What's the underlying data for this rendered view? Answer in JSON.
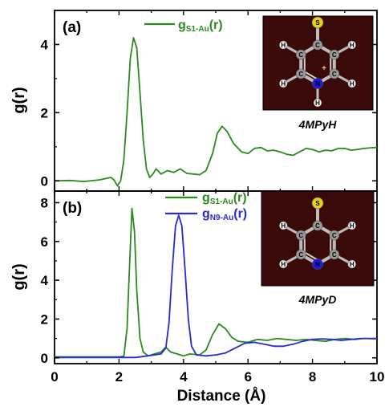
{
  "chart_data": [
    {
      "type": "line",
      "panel_label": "(a)",
      "title": "",
      "xlabel": "",
      "ylabel": "g(r)",
      "xlim": [
        0,
        10
      ],
      "ylim": [
        -0.3,
        5
      ],
      "yticks": [
        "0",
        "2",
        "4"
      ],
      "ytick_values": [
        0,
        2,
        4
      ],
      "xticks_shown": false,
      "grid": false,
      "legend_position": "top-center",
      "inset_label": "4MPyH",
      "series": [
        {
          "name": "gS1-Au(r)",
          "legend_main": "g",
          "legend_sub": "S1-Au",
          "legend_tail": "(r)",
          "color": "#2a8a1e",
          "points": [
            [
              0,
              0
            ],
            [
              0.5,
              0.01
            ],
            [
              0.9,
              -0.02
            ],
            [
              1.4,
              0.03
            ],
            [
              1.75,
              0.1
            ],
            [
              1.85,
              0.02
            ],
            [
              1.95,
              -0.15
            ],
            [
              2.05,
              0.0
            ],
            [
              2.15,
              0.6
            ],
            [
              2.25,
              2.0
            ],
            [
              2.35,
              3.6
            ],
            [
              2.45,
              4.2
            ],
            [
              2.55,
              3.9
            ],
            [
              2.65,
              2.6
            ],
            [
              2.75,
              1.2
            ],
            [
              2.85,
              0.35
            ],
            [
              2.95,
              0.1
            ],
            [
              3.05,
              0.2
            ],
            [
              3.15,
              0.35
            ],
            [
              3.3,
              0.2
            ],
            [
              3.5,
              0.3
            ],
            [
              3.7,
              0.25
            ],
            [
              3.9,
              0.35
            ],
            [
              4.1,
              0.22
            ],
            [
              4.3,
              0.2
            ],
            [
              4.5,
              0.18
            ],
            [
              4.7,
              0.3
            ],
            [
              4.9,
              0.8
            ],
            [
              5.05,
              1.4
            ],
            [
              5.2,
              1.6
            ],
            [
              5.35,
              1.45
            ],
            [
              5.55,
              1.1
            ],
            [
              5.8,
              0.85
            ],
            [
              6.0,
              0.8
            ],
            [
              6.2,
              0.95
            ],
            [
              6.4,
              0.98
            ],
            [
              6.6,
              0.88
            ],
            [
              6.8,
              0.9
            ],
            [
              7.0,
              0.85
            ],
            [
              7.2,
              0.78
            ],
            [
              7.4,
              0.75
            ],
            [
              7.6,
              0.85
            ],
            [
              7.8,
              0.95
            ],
            [
              8.0,
              0.92
            ],
            [
              8.2,
              0.85
            ],
            [
              8.4,
              0.9
            ],
            [
              8.6,
              0.88
            ],
            [
              8.8,
              0.95
            ],
            [
              9.0,
              0.95
            ],
            [
              9.2,
              0.9
            ],
            [
              9.4,
              0.92
            ],
            [
              9.6,
              0.95
            ],
            [
              9.8,
              0.97
            ],
            [
              10,
              0.98
            ]
          ]
        }
      ]
    },
    {
      "type": "line",
      "panel_label": "(b)",
      "title": "",
      "xlabel": "Distance (Å)",
      "ylabel": "g(r)",
      "xlim": [
        0,
        10
      ],
      "ylim": [
        -0.3,
        8.6
      ],
      "yticks": [
        "0",
        "2",
        "4",
        "6",
        "8"
      ],
      "ytick_values": [
        0,
        2,
        4,
        6,
        8
      ],
      "xticks": [
        "0",
        "2",
        "4",
        "6",
        "8",
        "10"
      ],
      "xtick_values": [
        0,
        2,
        4,
        6,
        8,
        10
      ],
      "grid": false,
      "legend_position": "top-center",
      "inset_label": "4MPyD",
      "series": [
        {
          "name": "gS1-Au(r)",
          "legend_main": "g",
          "legend_sub": "S1-Au",
          "legend_tail": "(r)",
          "color": "#2a8a1e",
          "points": [
            [
              0,
              0.05
            ],
            [
              1.0,
              0.05
            ],
            [
              2.0,
              0.05
            ],
            [
              2.15,
              0.08
            ],
            [
              2.25,
              1.5
            ],
            [
              2.32,
              4.5
            ],
            [
              2.4,
              7.7
            ],
            [
              2.48,
              6.5
            ],
            [
              2.55,
              3.5
            ],
            [
              2.65,
              1.0
            ],
            [
              2.75,
              0.3
            ],
            [
              2.9,
              0.1
            ],
            [
              3.1,
              0.2
            ],
            [
              3.3,
              0.3
            ],
            [
              3.45,
              0.55
            ],
            [
              3.6,
              0.3
            ],
            [
              3.8,
              0.2
            ],
            [
              4.0,
              0.1
            ],
            [
              4.2,
              0.2
            ],
            [
              4.5,
              0.15
            ],
            [
              4.7,
              0.4
            ],
            [
              4.9,
              1.2
            ],
            [
              5.1,
              1.75
            ],
            [
              5.3,
              1.5
            ],
            [
              5.5,
              1.05
            ],
            [
              5.7,
              0.85
            ],
            [
              6.0,
              0.8
            ],
            [
              6.3,
              0.95
            ],
            [
              6.6,
              0.9
            ],
            [
              6.9,
              1.0
            ],
            [
              7.2,
              0.95
            ],
            [
              7.5,
              0.9
            ],
            [
              7.8,
              0.95
            ],
            [
              8.1,
              0.9
            ],
            [
              8.4,
              0.85
            ],
            [
              8.7,
              0.95
            ],
            [
              9.0,
              1.0
            ],
            [
              9.3,
              0.95
            ],
            [
              9.6,
              1.0
            ],
            [
              10,
              0.98
            ]
          ]
        },
        {
          "name": "gN9-Au(r)",
          "legend_main": "g",
          "legend_sub": "N9-Au",
          "legend_tail": "(r)",
          "color": "#2828d8",
          "points": [
            [
              0,
              0.02
            ],
            [
              1.0,
              0.02
            ],
            [
              2.0,
              0.02
            ],
            [
              2.5,
              0.02
            ],
            [
              2.8,
              0.08
            ],
            [
              3.1,
              0.15
            ],
            [
              3.3,
              0.2
            ],
            [
              3.45,
              0.5
            ],
            [
              3.55,
              1.8
            ],
            [
              3.65,
              4.5
            ],
            [
              3.75,
              6.8
            ],
            [
              3.85,
              7.35
            ],
            [
              3.95,
              6.8
            ],
            [
              4.05,
              4.5
            ],
            [
              4.15,
              2.0
            ],
            [
              4.25,
              0.6
            ],
            [
              4.4,
              0.15
            ],
            [
              4.7,
              0.1
            ],
            [
              5.0,
              0.15
            ],
            [
              5.3,
              0.25
            ],
            [
              5.6,
              0.5
            ],
            [
              5.9,
              0.75
            ],
            [
              6.2,
              0.8
            ],
            [
              6.5,
              0.7
            ],
            [
              6.8,
              0.6
            ],
            [
              7.1,
              0.6
            ],
            [
              7.4,
              0.7
            ],
            [
              7.7,
              0.85
            ],
            [
              8.0,
              0.95
            ],
            [
              8.3,
              0.98
            ],
            [
              8.6,
              0.95
            ],
            [
              8.9,
              0.9
            ],
            [
              9.2,
              0.95
            ],
            [
              9.5,
              1.0
            ],
            [
              10,
              1.0
            ]
          ]
        }
      ]
    }
  ],
  "molecule_a": {
    "labels": {
      "s": "S",
      "c": "C",
      "n": "N",
      "h": "H",
      "plus": "+"
    },
    "colors": {
      "background": "#3a0a0a",
      "carbon": "#9a9a9a",
      "sulfur": "#e6d21a",
      "nitrogen": "#1a1ae0",
      "hydrogen": "#f0f0f0"
    }
  },
  "molecule_b": {
    "labels": {
      "s": "S",
      "c": "C",
      "n": "N",
      "h": "H"
    },
    "colors": {
      "background": "#3a0a0a",
      "carbon": "#9a9a9a",
      "sulfur": "#e6d21a",
      "nitrogen": "#1a1ae0",
      "hydrogen": "#f0f0f0"
    }
  }
}
